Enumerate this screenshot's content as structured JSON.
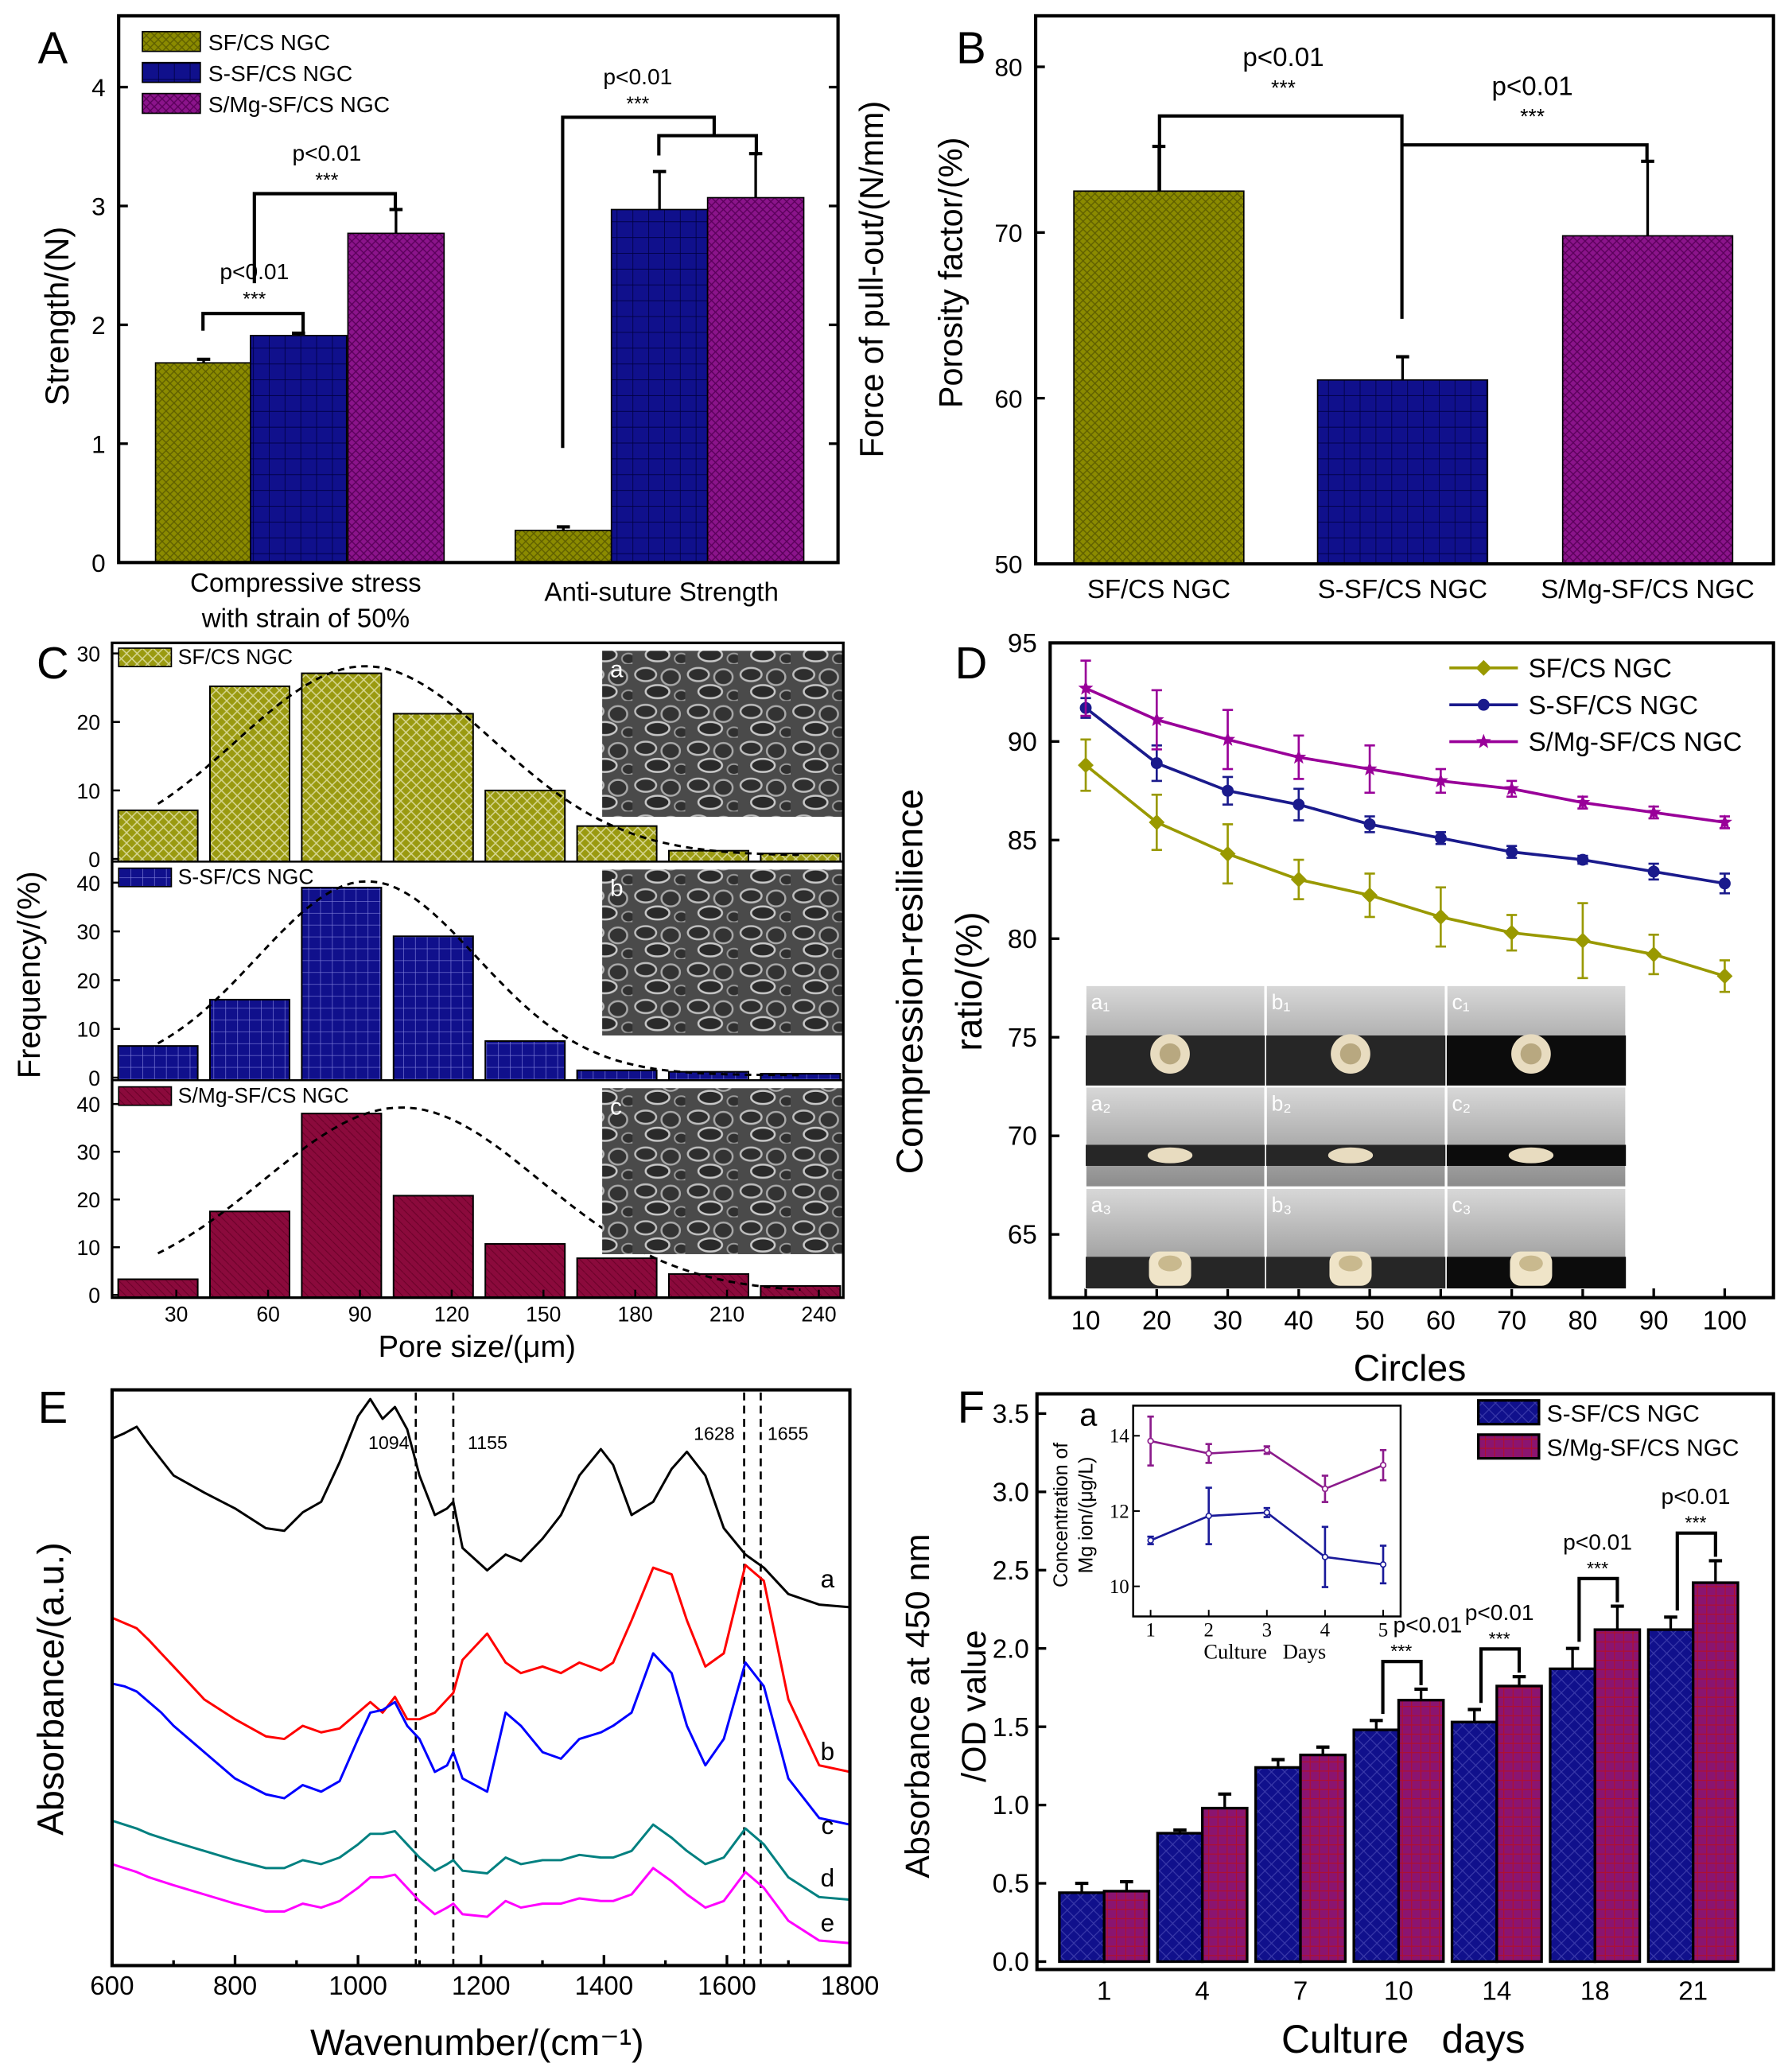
{
  "panel_labels": [
    "A",
    "B",
    "C",
    "D",
    "E",
    "F"
  ],
  "chart_data": [
    {
      "panel": "A",
      "type": "bar",
      "categories": [
        [
          "Compressive stress",
          "with strain of 50%"
        ],
        [
          "Anti-suture Strength"
        ]
      ],
      "ylabel": "Strength/(N)",
      "y2label": "Force of pull-out/(N/mm)",
      "ylim": [
        0,
        4.6
      ],
      "yticks": [
        "0",
        "1",
        "2",
        "3",
        "4"
      ],
      "legend": "top-left",
      "series": [
        {
          "name": "SF/CS NGC",
          "values": [
            1.68,
            0.27
          ],
          "errors": [
            0.03,
            0.03
          ],
          "color": "#8b8b00"
        },
        {
          "name": "S-SF/CS NGC",
          "values": [
            1.91,
            2.97
          ],
          "errors": [
            0.02,
            0.32
          ],
          "color": "#10108c"
        },
        {
          "name": "S/Mg-SF/CS NGC",
          "values": [
            2.77,
            3.07
          ],
          "errors": [
            0.2,
            0.37
          ],
          "color": "#8b148b"
        }
      ],
      "annotations": [
        {
          "text": "p<0.01",
          "stars": "***"
        },
        {
          "text": "p<0.01",
          "stars": "***"
        },
        {
          "text": "p<0.01",
          "stars": "***"
        }
      ]
    },
    {
      "panel": "B",
      "type": "bar",
      "categories": [
        "SF/CS NGC",
        "S-SF/CS NGC",
        "S/Mg-SF/CS NGC"
      ],
      "values": [
        72.5,
        61.1,
        69.8
      ],
      "errors": [
        2.7,
        1.4,
        4.5
      ],
      "colors": [
        "#8b8b00",
        "#10108c",
        "#8b148b"
      ],
      "ylabel": "Porosity factor/(%)",
      "ylim": [
        50,
        83
      ],
      "yticks": [
        "50",
        "60",
        "70",
        "80"
      ],
      "annotations": [
        {
          "text": "p<0.01",
          "stars": "***"
        },
        {
          "text": "p<0.01",
          "stars": "***"
        }
      ]
    },
    {
      "panel": "C",
      "type": "bar",
      "xlabel": "Pore size/(μm)",
      "ylabel": "Frequency/(%)",
      "xlim": [
        9,
        248
      ],
      "xticks": [
        "30",
        "60",
        "90",
        "120",
        "150",
        "180",
        "210",
        "240"
      ],
      "bin_centers": [
        24,
        54,
        84,
        114,
        144,
        174,
        204,
        234
      ],
      "bin_width": 26,
      "fit_curve": "gaussian",
      "series": [
        {
          "name": "SF/CS NGC",
          "values": [
            7.1,
            25.2,
            27.1,
            21.2,
            10.0,
            4.8,
            1.2,
            0.8
          ],
          "ylim": [
            0,
            30
          ],
          "yticks": [
            "0",
            "10",
            "20",
            "30"
          ],
          "color": "#9a9a10",
          "image_label": "a"
        },
        {
          "name": "S-SF/CS NGC",
          "values": [
            6.5,
            16.0,
            39.0,
            29.0,
            7.5,
            1.5,
            1.2,
            0.8
          ],
          "ylim": [
            0,
            40
          ],
          "yticks": [
            "0",
            "10",
            "20",
            "30",
            "40"
          ],
          "color": "#10108c",
          "image_label": "b"
        },
        {
          "name": "S/Mg-SF/CS NGC",
          "values": [
            3.3,
            17.5,
            38.0,
            20.8,
            10.7,
            7.7,
            4.4,
            1.9
          ],
          "ylim": [
            0,
            40
          ],
          "yticks": [
            "0",
            "10",
            "20",
            "30",
            "40"
          ],
          "color": "#8b0a3c",
          "image_label": "c"
        }
      ]
    },
    {
      "panel": "D",
      "type": "line",
      "xlabel": "Circles",
      "ylabel": [
        "Compression-resilience",
        "ratio/(%)"
      ],
      "x": [
        10,
        20,
        30,
        40,
        50,
        60,
        70,
        80,
        90,
        100
      ],
      "xticks": [
        "10",
        "20",
        "30",
        "40",
        "50",
        "60",
        "70",
        "80",
        "90",
        "100"
      ],
      "ylim": [
        61.8,
        95.2
      ],
      "yticks": [
        "65",
        "70",
        "75",
        "80",
        "85",
        "90",
        "95"
      ],
      "legend": "top-right",
      "series": [
        {
          "name": "SF/CS NGC",
          "marker": "diamond",
          "color": "#999900",
          "values": [
            88.8,
            85.9,
            84.3,
            83.0,
            82.2,
            81.1,
            80.3,
            79.9,
            79.2,
            78.1
          ],
          "errors": [
            1.3,
            1.4,
            1.5,
            1.0,
            1.1,
            1.5,
            0.9,
            1.9,
            1.0,
            0.8
          ]
        },
        {
          "name": "S-SF/CS NGC",
          "marker": "circle",
          "color": "#1a1a8c",
          "values": [
            91.7,
            88.9,
            87.5,
            86.8,
            85.8,
            85.1,
            84.4,
            84.0,
            83.4,
            82.8
          ],
          "errors": [
            0.5,
            0.9,
            0.7,
            0.8,
            0.4,
            0.3,
            0.3,
            0.2,
            0.4,
            0.5
          ]
        },
        {
          "name": "S/Mg-SF/CS NGC",
          "marker": "star",
          "color": "#990099",
          "values": [
            92.7,
            91.1,
            90.1,
            89.2,
            88.6,
            88.0,
            87.6,
            86.9,
            86.4,
            85.9
          ],
          "errors": [
            1.4,
            1.5,
            1.5,
            1.1,
            1.2,
            0.6,
            0.4,
            0.3,
            0.3,
            0.3
          ]
        }
      ],
      "inset_photo_labels": [
        [
          "a₁",
          "b₁",
          "c₁"
        ],
        [
          "a₂",
          "b₂",
          "c₂"
        ],
        [
          "a₃",
          "b₃",
          "c₃"
        ]
      ]
    },
    {
      "panel": "E",
      "type": "line",
      "xlabel": "Wavenumber/(cm⁻¹)",
      "ylabel": "Absorbance/(a.u.)",
      "xlim": [
        600,
        1800
      ],
      "ylim": [
        0,
        4.37
      ],
      "xticks": [
        "600",
        "800",
        "1000",
        "1200",
        "1400",
        "1600",
        "1800"
      ],
      "x": [
        600,
        620,
        640,
        660,
        680,
        700,
        750,
        800,
        850,
        880,
        910,
        940,
        970,
        1000,
        1020,
        1040,
        1060,
        1080,
        1100,
        1125,
        1145,
        1155,
        1170,
        1210,
        1240,
        1265,
        1300,
        1330,
        1360,
        1395,
        1415,
        1445,
        1480,
        1510,
        1535,
        1565,
        1595,
        1630,
        1660,
        1700,
        1750,
        1800
      ],
      "series": [
        {
          "label": "a",
          "color": "#000000",
          "values": [
            4.0,
            4.04,
            4.09,
            3.96,
            3.84,
            3.72,
            3.59,
            3.47,
            3.32,
            3.3,
            3.44,
            3.52,
            3.82,
            4.17,
            4.3,
            4.15,
            4.24,
            4.07,
            3.72,
            3.42,
            3.47,
            3.52,
            3.17,
            3.0,
            3.12,
            3.07,
            3.24,
            3.42,
            3.72,
            3.92,
            3.8,
            3.42,
            3.52,
            3.77,
            3.9,
            3.72,
            3.32,
            3.12,
            3.02,
            2.82,
            2.74,
            2.72
          ]
        },
        {
          "label": "b",
          "color": "#ff0000",
          "values": [
            2.64,
            2.6,
            2.56,
            2.47,
            2.37,
            2.27,
            2.02,
            1.87,
            1.74,
            1.72,
            1.82,
            1.77,
            1.8,
            1.92,
            2.0,
            1.92,
            2.04,
            1.87,
            1.87,
            1.92,
            2.02,
            2.07,
            2.32,
            2.52,
            2.3,
            2.22,
            2.27,
            2.22,
            2.3,
            2.24,
            2.3,
            2.62,
            3.02,
            2.97,
            2.62,
            2.27,
            2.37,
            3.04,
            2.92,
            2.02,
            1.52,
            1.47
          ]
        },
        {
          "label": "c",
          "color": "#0000ff",
          "values": [
            2.14,
            2.12,
            2.08,
            2.0,
            1.92,
            1.82,
            1.62,
            1.42,
            1.3,
            1.27,
            1.37,
            1.32,
            1.4,
            1.72,
            1.92,
            1.94,
            2.0,
            1.82,
            1.72,
            1.47,
            1.52,
            1.62,
            1.42,
            1.32,
            1.92,
            1.82,
            1.62,
            1.57,
            1.72,
            1.77,
            1.82,
            1.92,
            2.37,
            2.22,
            1.82,
            1.52,
            1.72,
            2.3,
            2.12,
            1.42,
            1.12,
            1.07
          ]
        },
        {
          "label": "d",
          "color": "#008080",
          "values": [
            1.1,
            1.07,
            1.04,
            1.0,
            0.97,
            0.94,
            0.87,
            0.8,
            0.74,
            0.74,
            0.8,
            0.77,
            0.82,
            0.92,
            1.0,
            1.0,
            1.02,
            0.92,
            0.82,
            0.72,
            0.77,
            0.8,
            0.72,
            0.7,
            0.82,
            0.77,
            0.8,
            0.8,
            0.84,
            0.82,
            0.82,
            0.87,
            1.07,
            0.97,
            0.87,
            0.77,
            0.82,
            1.04,
            0.92,
            0.67,
            0.52,
            0.5
          ]
        },
        {
          "label": "e",
          "color": "#ff00ff",
          "values": [
            0.77,
            0.74,
            0.71,
            0.67,
            0.64,
            0.61,
            0.54,
            0.47,
            0.41,
            0.41,
            0.47,
            0.44,
            0.49,
            0.59,
            0.67,
            0.67,
            0.69,
            0.59,
            0.49,
            0.39,
            0.44,
            0.47,
            0.39,
            0.37,
            0.49,
            0.44,
            0.47,
            0.47,
            0.51,
            0.49,
            0.49,
            0.54,
            0.74,
            0.64,
            0.54,
            0.44,
            0.49,
            0.71,
            0.59,
            0.34,
            0.19,
            0.17
          ]
        }
      ],
      "reference_lines": [
        {
          "x": 1094,
          "label": "1094"
        },
        {
          "x": 1155,
          "label": "1155"
        },
        {
          "x": 1628,
          "label": "1628"
        },
        {
          "x": 1655,
          "label": "1655"
        }
      ]
    },
    {
      "panel": "F",
      "type": "bar",
      "xlabel": "Culture   days",
      "ylabel": [
        "Absorbance at 450 nm",
        "/OD value"
      ],
      "categories": [
        "1",
        "4",
        "7",
        "10",
        "14",
        "18",
        "21"
      ],
      "ylim": [
        0,
        3.62
      ],
      "yticks": [
        "0.0",
        "0.5",
        "1.0",
        "1.5",
        "2.0",
        "2.5",
        "3.0",
        "3.5"
      ],
      "legend": "top-right",
      "series": [
        {
          "name": "S-SF/CS NGC",
          "color": "#10108c",
          "values": [
            0.44,
            0.82,
            1.24,
            1.48,
            1.53,
            1.87,
            2.12
          ],
          "errors": [
            0.06,
            0.02,
            0.05,
            0.06,
            0.08,
            0.13,
            0.08
          ]
        },
        {
          "name": "S/Mg-SF/CS NGC",
          "color": "#8b1470",
          "values": [
            0.45,
            0.98,
            1.32,
            1.67,
            1.76,
            2.12,
            2.42
          ],
          "errors": [
            0.06,
            0.09,
            0.05,
            0.07,
            0.06,
            0.15,
            0.14
          ]
        }
      ],
      "annotations": [
        {
          "category": "10",
          "text": "p<0.01",
          "stars": "***"
        },
        {
          "category": "14",
          "text": "p<0.01",
          "stars": "***"
        },
        {
          "category": "18",
          "text": "p<0.01",
          "stars": "***"
        },
        {
          "category": "21",
          "text": "p<0.01",
          "stars": "***"
        }
      ],
      "inset": {
        "label": "a",
        "type": "line",
        "xlabel": "Culture   Days",
        "ylabel": [
          "Concentration of",
          "Mg ion/(μg/L)"
        ],
        "x": [
          1,
          2,
          3,
          4,
          5
        ],
        "xticks": [
          "1",
          "2",
          "3",
          "4",
          "5"
        ],
        "ylim": [
          9.2,
          14.8
        ],
        "yticks": [
          "10",
          "12",
          "14"
        ],
        "series": [
          {
            "color": "#8b1a8b",
            "values": [
              13.86,
              13.53,
              13.62,
              12.59,
              13.22
            ],
            "errors": [
              0.65,
              0.25,
              0.1,
              0.35,
              0.4
            ]
          },
          {
            "color": "#1a1a9a",
            "values": [
              11.22,
              11.87,
              11.96,
              10.78,
              10.58
            ],
            "errors": [
              0.1,
              0.75,
              0.12,
              0.8,
              0.5
            ]
          }
        ]
      }
    }
  ]
}
